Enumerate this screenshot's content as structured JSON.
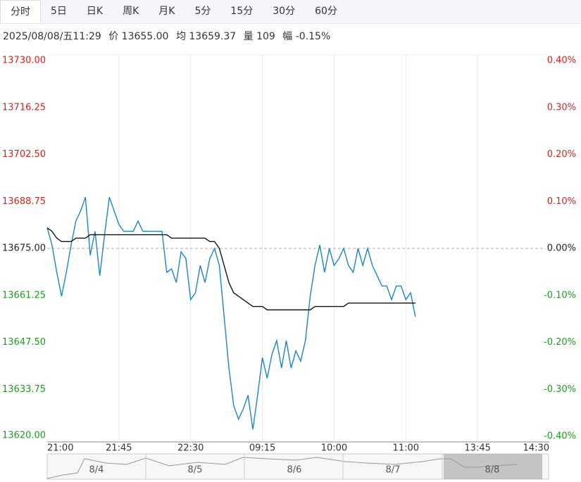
{
  "tabs": [
    "分时",
    "5日",
    "日K",
    "周K",
    "月K",
    "5分",
    "15分",
    "30分",
    "60分"
  ],
  "info": {
    "time": "2025/08/08/五11:29",
    "price": "价 13655.00",
    "avg": "均 13659.37",
    "volume": "量 109",
    "change": "幅 -0.15%"
  },
  "navigator": {
    "labels": [
      "8/4",
      "8/5",
      "8/6",
      "8/7",
      "8/8"
    ]
  },
  "chart_data": {
    "type": "line",
    "x": [
      0,
      3,
      6,
      9,
      12,
      15,
      18,
      21,
      24,
      27,
      30,
      33,
      36,
      39,
      42,
      45,
      48,
      51,
      54,
      57,
      60,
      63,
      66,
      69,
      72,
      75,
      78,
      81,
      84,
      87,
      90,
      93,
      96,
      99,
      102,
      105,
      108,
      111,
      114,
      117,
      120,
      123,
      126,
      129,
      132,
      135,
      138,
      141,
      144,
      147,
      150,
      153,
      156,
      159,
      162,
      165,
      168,
      171,
      174,
      177,
      180,
      183,
      186,
      189,
      192,
      195,
      198,
      201,
      204,
      207,
      210,
      213,
      216,
      219,
      222,
      225,
      228,
      231
    ],
    "series": [
      {
        "color": "#1a85c8",
        "values": [
          13681,
          13676,
          13668,
          13661,
          13668,
          13676,
          13683,
          13686,
          13690,
          13673,
          13680,
          13667,
          13679,
          13690,
          13686,
          13682,
          13680,
          13680,
          13680,
          13683,
          13680,
          13680,
          13680,
          13680,
          13680,
          13668,
          13669,
          13665,
          13674,
          13672,
          13660,
          13662,
          13670,
          13665,
          13672,
          13675,
          13670,
          13655,
          13640,
          13629,
          13625,
          13628,
          13632,
          13622,
          13632,
          13643,
          13637,
          13644,
          13648,
          13640,
          13648,
          13640,
          13645,
          13642,
          13648,
          13661,
          13670,
          13676,
          13668,
          13675,
          13670,
          13672,
          13675,
          13670,
          13668,
          13675,
          13670,
          13675,
          13670,
          13667,
          13664,
          13664,
          13660,
          13664,
          13664,
          13660,
          13662,
          13655
        ]
      },
      {
        "color": "#111111",
        "values": [
          13681,
          13680,
          13678,
          13677,
          13677,
          13677,
          13678,
          13678,
          13678,
          13679,
          13679,
          13679,
          13679,
          13679,
          13679,
          13679,
          13679,
          13679,
          13679,
          13679,
          13679,
          13679,
          13679,
          13679,
          13679,
          13679,
          13678,
          13678,
          13678,
          13678,
          13678,
          13678,
          13678,
          13678,
          13677,
          13677,
          13675,
          13670,
          13665,
          13662,
          13661,
          13660,
          13659,
          13658,
          13658,
          13658,
          13657,
          13657,
          13657,
          13657,
          13657,
          13657,
          13657,
          13657,
          13657,
          13657,
          13658,
          13658,
          13658,
          13658,
          13658,
          13658,
          13658,
          13659,
          13659,
          13659,
          13659,
          13659,
          13659,
          13659,
          13659,
          13659,
          13659,
          13659,
          13659,
          13659,
          13659,
          13659
        ]
      }
    ],
    "xlim": [
      0,
      315
    ],
    "xticks": [
      {
        "value": 0,
        "label": "21:00"
      },
      {
        "value": 45,
        "label": "21:45"
      },
      {
        "value": 90,
        "label": "22:30"
      },
      {
        "value": 135,
        "label": "09:15"
      },
      {
        "value": 180,
        "label": "10:00"
      },
      {
        "value": 225,
        "label": "11:00"
      },
      {
        "value": 270,
        "label": "13:45"
      },
      {
        "value": 315,
        "label": "14:30"
      }
    ],
    "ylim": [
      13620,
      13730
    ],
    "yticks": [
      {
        "value": 13620,
        "label": "13620.00"
      },
      {
        "value": 13633.75,
        "label": "13633.75"
      },
      {
        "value": 13647.5,
        "label": "13647.50"
      },
      {
        "value": 13661.25,
        "label": "13661.25"
      },
      {
        "value": 13675,
        "label": "13675.00"
      },
      {
        "value": 13688.75,
        "label": "13688.75"
      },
      {
        "value": 13702.5,
        "label": "13702.50"
      },
      {
        "value": 13716.25,
        "label": "13716.25"
      },
      {
        "value": 13730,
        "label": "13730.00"
      }
    ],
    "y2lim": [
      -0.4,
      0.4
    ],
    "y2ticks": [
      {
        "value": -0.4,
        "label": "-0.40%"
      },
      {
        "value": -0.3,
        "label": "-0.30%"
      },
      {
        "value": -0.2,
        "label": "-0.20%"
      },
      {
        "value": -0.1,
        "label": "-0.10%"
      },
      {
        "value": 0,
        "label": "0.00%"
      },
      {
        "value": 0.1,
        "label": "0.10%"
      },
      {
        "value": 0.2,
        "label": "0.20%"
      },
      {
        "value": 0.3,
        "label": "0.30%"
      },
      {
        "value": 0.4,
        "label": "0.40%"
      }
    ],
    "reference": 13675,
    "up_color": "#e0201a",
    "down_color": "#1aa01a",
    "flat_color": "#222222",
    "grid": true
  }
}
